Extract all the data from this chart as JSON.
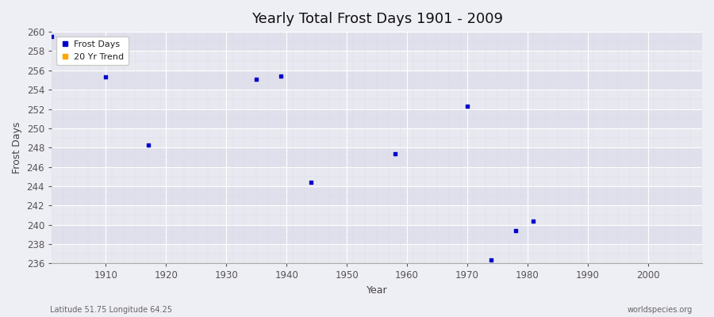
{
  "title": "Yearly Total Frost Days 1901 - 2009",
  "xlabel": "Year",
  "ylabel": "Frost Days",
  "subtitle_left": "Latitude 51.75 Longitude 64.25",
  "subtitle_right": "worldspecies.org",
  "xlim": [
    1901,
    2009
  ],
  "ylim": [
    236,
    260
  ],
  "yticks": [
    236,
    238,
    240,
    242,
    244,
    246,
    248,
    250,
    252,
    254,
    256,
    258,
    260
  ],
  "xticks": [
    1910,
    1920,
    1930,
    1940,
    1950,
    1960,
    1970,
    1980,
    1990,
    2000
  ],
  "scatter_x": [
    1901,
    1910,
    1917,
    1935,
    1939,
    1944,
    1958,
    1970,
    1974,
    1978,
    1981
  ],
  "scatter_y": [
    259.5,
    255.3,
    248.3,
    255.1,
    255.4,
    244.4,
    247.4,
    252.3,
    236.4,
    239.4,
    240.4
  ],
  "scatter_color": "#0000cc",
  "scatter_size": 6,
  "bg_color": "#eeeef5",
  "plot_bg_color": "#eaeaf2",
  "band_color_light": "#e8e8f0",
  "band_color_dark": "#e0e0ec",
  "grid_color": "#ffffff",
  "grid_minor_color": "#d8d8e8",
  "legend_labels": [
    "Frost Days",
    "20 Yr Trend"
  ],
  "legend_colors": [
    "#0000cc",
    "#ffa500"
  ],
  "legend_marker": "s"
}
